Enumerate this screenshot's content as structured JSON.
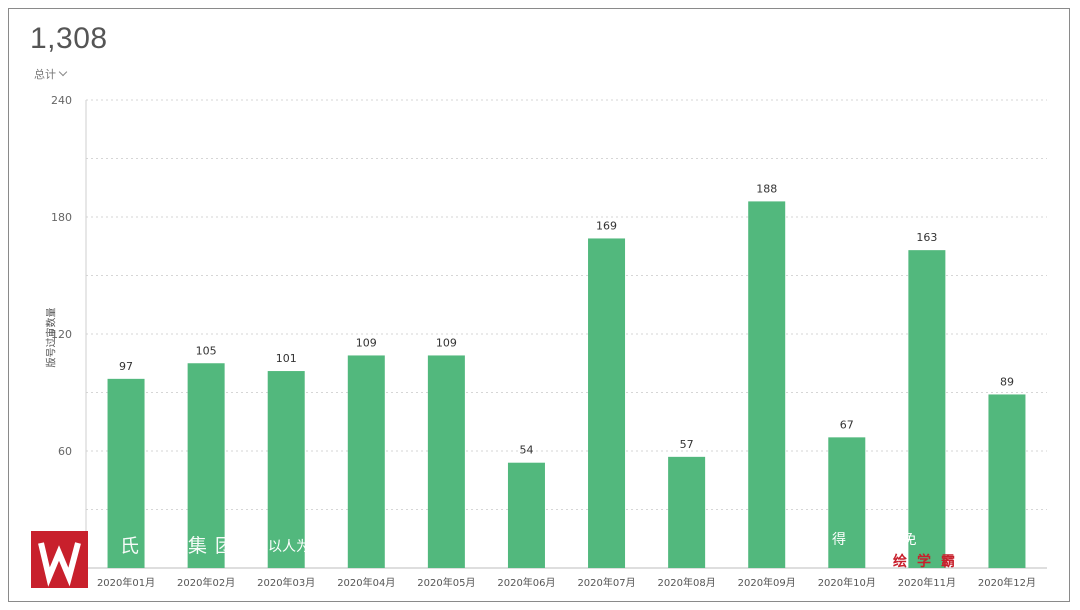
{
  "summary": {
    "total": "1,308",
    "total_label": "总计"
  },
  "chart_data": {
    "type": "bar",
    "title": "",
    "xlabel": "",
    "ylabel": "版号过审数量",
    "categories": [
      "2020年01月",
      "2020年02月",
      "2020年03月",
      "2020年04月",
      "2020年05月",
      "2020年06月",
      "2020年07月",
      "2020年08月",
      "2020年09月",
      "2020年10月",
      "2020年11月",
      "2020年12月"
    ],
    "series": [
      {
        "values": [
          97,
          105,
          101,
          109,
          109,
          54,
          169,
          57,
          188,
          67,
          163,
          89
        ]
      }
    ],
    "ylim": [
      0,
      240
    ],
    "yticks": [
      60,
      120,
      180,
      240
    ],
    "grid": true,
    "bar_color": "#52b87d",
    "grid_color": "#d6d6d6"
  },
  "watermark": {
    "left_text": "氏教 集团",
    "left_small": "以人为",
    "right_text": "得 免 品 教",
    "right_red": "绘学霸",
    "logo_color": "#c8202c"
  }
}
